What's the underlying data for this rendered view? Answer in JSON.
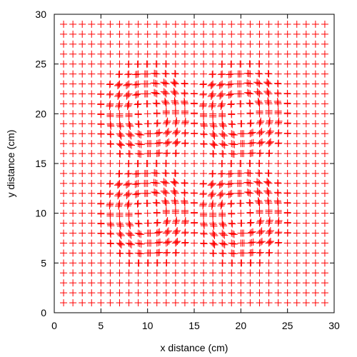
{
  "chart_data": {
    "type": "scatter",
    "title": "",
    "xlabel": "x distance (cm)",
    "ylabel": "y distance (cm)",
    "xlim": [
      0,
      30
    ],
    "ylim": [
      0,
      30
    ],
    "xticks": [
      0,
      5,
      10,
      15,
      20,
      25,
      30
    ],
    "yticks": [
      0,
      5,
      10,
      15,
      20,
      25,
      30
    ],
    "xtick_labels": [
      "0",
      "5",
      "10",
      "15",
      "20",
      "25",
      "30"
    ],
    "ytick_labels": [
      "0",
      "5",
      "10",
      "15",
      "20",
      "25",
      "30"
    ],
    "grid": false,
    "legend": "none",
    "marker": "cross",
    "marker_color": "#ff0000",
    "grid_points": {
      "x_start": 1,
      "x_end": 29,
      "x_step": 1,
      "y_start": 1,
      "y_end": 29,
      "y_step": 1
    },
    "displacement_centers": [
      [
        10,
        10
      ],
      [
        20,
        10
      ],
      [
        10,
        20
      ],
      [
        20,
        20
      ]
    ],
    "displacement_radius_cm": 6,
    "max_marker_count": 3
  },
  "colors": {
    "axis": "#000000",
    "marker": "#ff0000",
    "background": "#ffffff"
  }
}
